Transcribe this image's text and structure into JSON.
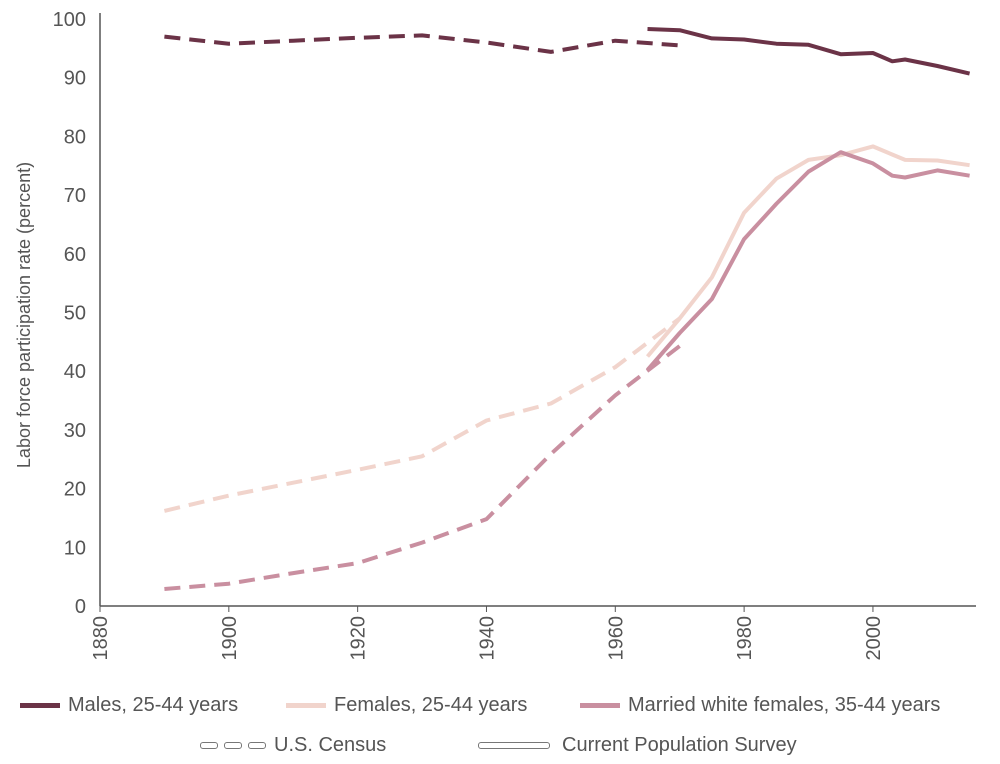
{
  "chart_data": {
    "type": "line",
    "title": "",
    "xlabel": "",
    "ylabel": "Labor force participation rate (percent)",
    "xlim": [
      1880,
      2016
    ],
    "ylim": [
      0,
      100
    ],
    "x_ticks": [
      1880,
      1900,
      1920,
      1940,
      1960,
      1980,
      2000
    ],
    "y_ticks": [
      0,
      10,
      20,
      30,
      40,
      50,
      60,
      70,
      80,
      90,
      100
    ],
    "grid": false,
    "legend_position": "bottom",
    "series": [
      {
        "name": "Males, 25-44 years",
        "source": "U.S. Census",
        "style": "dashed",
        "color": "#6b3347",
        "x": [
          1890,
          1900,
          1910,
          1920,
          1930,
          1940,
          1950,
          1960,
          1970
        ],
        "y": [
          97,
          95.8,
          96.3,
          96.8,
          97.2,
          96,
          94.4,
          96.3,
          95.5
        ]
      },
      {
        "name": "Males, 25-44 years",
        "source": "Current Population Survey",
        "style": "solid",
        "color": "#6b3347",
        "x": [
          1965,
          1970,
          1975,
          1980,
          1985,
          1990,
          1995,
          2000,
          2003,
          2005,
          2010,
          2015
        ],
        "y": [
          98.3,
          98.1,
          96.7,
          96.5,
          95.8,
          95.6,
          94,
          94.2,
          92.8,
          93.1,
          92,
          90.7
        ]
      },
      {
        "name": "Females, 25-44 years",
        "source": "U.S. Census",
        "style": "dashed",
        "color": "#f1d4cc",
        "x": [
          1890,
          1900,
          1910,
          1920,
          1930,
          1940,
          1950,
          1960,
          1970
        ],
        "y": [
          16.2,
          18.8,
          21,
          23.2,
          25.5,
          31.6,
          34.5,
          40.7,
          49
        ]
      },
      {
        "name": "Females, 25-44 years",
        "source": "Current Population Survey",
        "style": "solid",
        "color": "#f1d4cc",
        "x": [
          1965,
          1970,
          1975,
          1980,
          1985,
          1990,
          1995,
          2000,
          2005,
          2010,
          2015
        ],
        "y": [
          42.5,
          49,
          56,
          67,
          72.8,
          76,
          76.8,
          78.3,
          76,
          75.9,
          75.1
        ]
      },
      {
        "name": "Married white females, 35-44 years",
        "source": "U.S. Census",
        "style": "dashed",
        "color": "#c98fa0",
        "x": [
          1890,
          1900,
          1910,
          1920,
          1930,
          1940,
          1950,
          1960,
          1970
        ],
        "y": [
          2.9,
          3.8,
          5.6,
          7.3,
          10.8,
          14.8,
          25.9,
          35.9,
          44.3
        ]
      },
      {
        "name": "Married white females, 35-44 years",
        "source": "Current Population Survey",
        "style": "solid",
        "color": "#c98fa0",
        "x": [
          1965,
          1970,
          1975,
          1980,
          1985,
          1990,
          1995,
          2000,
          2003,
          2005,
          2010,
          2015
        ],
        "y": [
          40.2,
          46.5,
          52.3,
          62.5,
          68.5,
          74,
          77.3,
          75.4,
          73.3,
          73,
          74.2,
          73.3
        ]
      }
    ]
  },
  "legend": {
    "series": [
      {
        "label": "Males, 25-44 years",
        "color": "#6b3347"
      },
      {
        "label": "Females, 25-44 years",
        "color": "#f1d4cc"
      },
      {
        "label": "Married white females, 35-44 years",
        "color": "#c98fa0"
      }
    ],
    "sources": [
      {
        "label": "U.S. Census",
        "style": "dashed"
      },
      {
        "label": "Current Population Survey",
        "style": "solid"
      }
    ]
  }
}
